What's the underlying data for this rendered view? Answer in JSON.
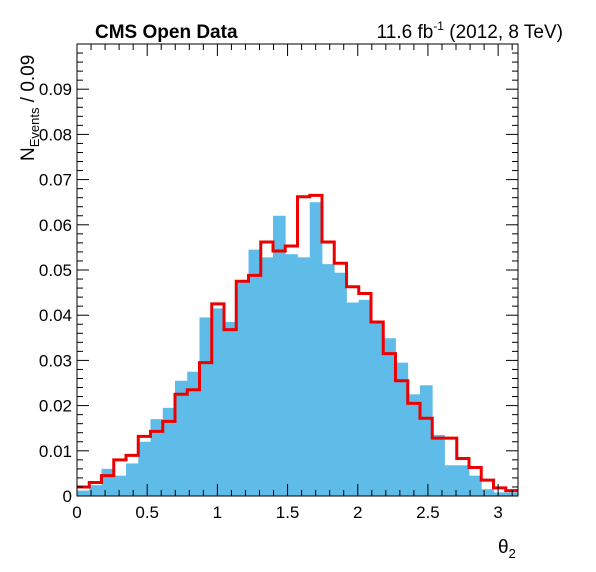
{
  "header": {
    "experiment": "CMS Open Data",
    "lumi_value": "11.6 fb",
    "lumi_exp": "-1",
    "run_info": " (2012, 8 TeV)"
  },
  "chart_data": {
    "type": "histogram",
    "title": "",
    "xlabel_main": "θ",
    "xlabel_sub": "2",
    "ylabel_main": "N",
    "ylabel_sub": "Events",
    "ylabel_suffix": " / 0.09",
    "xlim": [
      0,
      3.14159
    ],
    "ylim": [
      0,
      0.1
    ],
    "x_ticks": [
      0,
      0.5,
      1,
      1.5,
      2,
      2.5,
      3
    ],
    "x_tick_labels": [
      "0",
      "0.5",
      "1",
      "1.5",
      "2",
      "2.5",
      "3"
    ],
    "y_ticks": [
      0,
      0.01,
      0.02,
      0.03,
      0.04,
      0.05,
      0.06,
      0.07,
      0.08,
      0.09
    ],
    "y_tick_labels": [
      "0",
      "0.01",
      "0.02",
      "0.03",
      "0.04",
      "0.05",
      "0.06",
      "0.07",
      "0.08",
      "0.09"
    ],
    "n_bins": 36,
    "series": [
      {
        "style": "filled",
        "color": "#5fbce8",
        "values": [
          0.0012,
          0.0024,
          0.006,
          0.0045,
          0.0072,
          0.012,
          0.017,
          0.0195,
          0.0255,
          0.0275,
          0.0395,
          0.0415,
          0.0385,
          0.0478,
          0.0545,
          0.0528,
          0.062,
          0.0535,
          0.0528,
          0.065,
          0.0513,
          0.0494,
          0.0428,
          0.0434,
          0.0385,
          0.0349,
          0.0295,
          0.0225,
          0.0245,
          0.0135,
          0.0068,
          0.0068,
          0.0045,
          0.0015,
          0.0008,
          0.0008
        ]
      },
      {
        "style": "step",
        "color": "#ee0000",
        "values": [
          0.002,
          0.003,
          0.0045,
          0.008,
          0.009,
          0.0132,
          0.0143,
          0.0165,
          0.0225,
          0.0235,
          0.0295,
          0.0425,
          0.0368,
          0.0475,
          0.0488,
          0.0562,
          0.0542,
          0.0553,
          0.0662,
          0.0665,
          0.0562,
          0.0515,
          0.0463,
          0.0448,
          0.0385,
          0.0315,
          0.0255,
          0.0205,
          0.0172,
          0.0128,
          0.0128,
          0.0083,
          0.0063,
          0.0035,
          0.0018,
          0.0012
        ]
      }
    ]
  }
}
